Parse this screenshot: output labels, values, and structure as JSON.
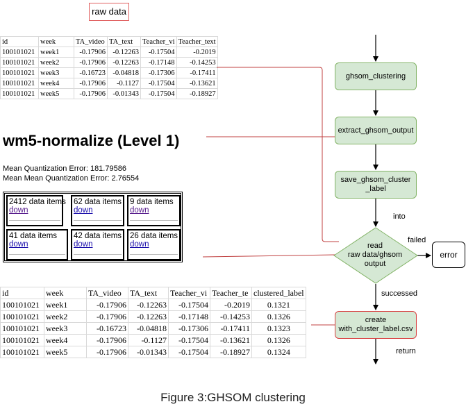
{
  "raw_label": "raw data",
  "raw_table": {
    "headers": [
      "id",
      "week",
      "TA_video",
      "TA_text",
      "Teacher_vi",
      "Teacher_text"
    ],
    "rows": [
      [
        "100101021",
        "week1",
        "-0.17906",
        "-0.12263",
        "-0.17504",
        "-0.2019"
      ],
      [
        "100101021",
        "week2",
        "-0.17906",
        "-0.12263",
        "-0.17148",
        "-0.14253"
      ],
      [
        "100101021",
        "week3",
        "-0.16723",
        "-0.04818",
        "-0.17306",
        "-0.17411"
      ],
      [
        "100101021",
        "week4",
        "-0.17906",
        "-0.1127",
        "-0.17504",
        "-0.13621"
      ],
      [
        "100101021",
        "week5",
        "-0.17906",
        "-0.01343",
        "-0.17504",
        "-0.18927"
      ]
    ]
  },
  "ghsom_title": "wm5-normalize (Level 1)",
  "mqe": "Mean Quantization Error: 181.79586",
  "mmqe": "Mean Mean Quantization Error: 2.76554",
  "clusters": [
    {
      "items": "2412 data items",
      "link": "down"
    },
    {
      "items": "62 data items",
      "link": "down"
    },
    {
      "items": "9 data items",
      "link": "down"
    },
    {
      "items": "41 data items",
      "link": "down"
    },
    {
      "items": "42 data items",
      "link": "down"
    },
    {
      "items": "26 data items",
      "link": "down"
    }
  ],
  "cluster_table": {
    "headers": [
      "id",
      "week",
      "TA_video",
      "TA_text",
      "Teacher_vi",
      "Teacher_te",
      "clustered_label"
    ],
    "rows": [
      [
        "100101021",
        "week1",
        "-0.17906",
        "-0.12263",
        "-0.17504",
        "-0.2019",
        "0.1321"
      ],
      [
        "100101021",
        "week2",
        "-0.17906",
        "-0.12263",
        "-0.17148",
        "-0.14253",
        "0.1326"
      ],
      [
        "100101021",
        "week3",
        "-0.16723",
        "-0.04818",
        "-0.17306",
        "-0.17411",
        "0.1323"
      ],
      [
        "100101021",
        "week4",
        "-0.17906",
        "-0.1127",
        "-0.17504",
        "-0.13621",
        "0.1326"
      ],
      [
        "100101021",
        "week5",
        "-0.17906",
        "-0.01343",
        "-0.17504",
        "-0.18927",
        "0.1324"
      ]
    ]
  },
  "flow": {
    "n1": "ghsom_clustering",
    "n2": "extract_ghsom_output",
    "n3_line1": "save_ghsom_cluster",
    "n3_line2": "_label",
    "into": "into",
    "d_line1": "read",
    "d_line2": "raw data/ghsom",
    "d_line3": "output",
    "failed": "failed",
    "error": "error",
    "successed": "successed",
    "n4_line1": "create",
    "n4_line2": "with_cluster_label.csv",
    "return": "return"
  },
  "caption": "Figure 3:GHSOM clustering",
  "colors": {
    "node_fill": "#d5e8d4",
    "node_border": "#82b366",
    "connector": "#c04040"
  }
}
